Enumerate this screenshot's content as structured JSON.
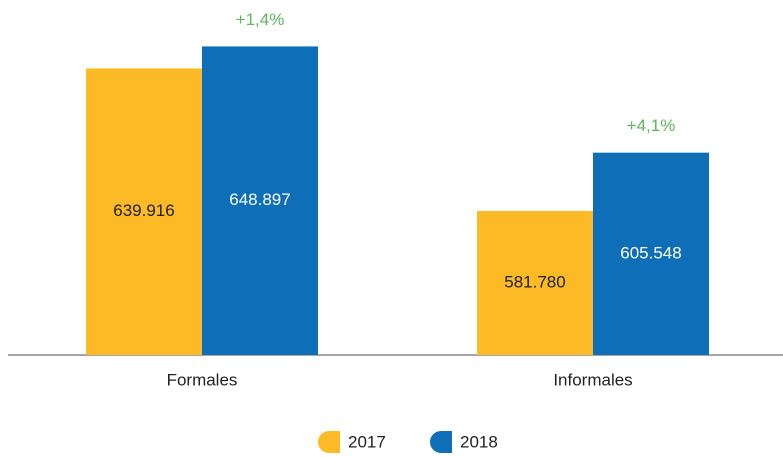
{
  "chart_data": {
    "type": "bar",
    "categories": [
      "Formales",
      "Informales"
    ],
    "series": [
      {
        "name": "2017",
        "color": "#fbba26",
        "values": [
          639916,
          581780
        ],
        "value_labels": [
          "639.916",
          "581.780"
        ],
        "label_color": "#222222"
      },
      {
        "name": "2018",
        "color": "#0e6eb8",
        "values": [
          648897,
          605548
        ],
        "value_labels": [
          "648.897",
          "605.548"
        ],
        "label_color": "#ffffff"
      }
    ],
    "annotations": [
      "+1,4%",
      "+4,1%"
    ],
    "annotation_color": "#5cb85c",
    "ylim": [
      523000,
      656000
    ],
    "legend": "bottom"
  }
}
